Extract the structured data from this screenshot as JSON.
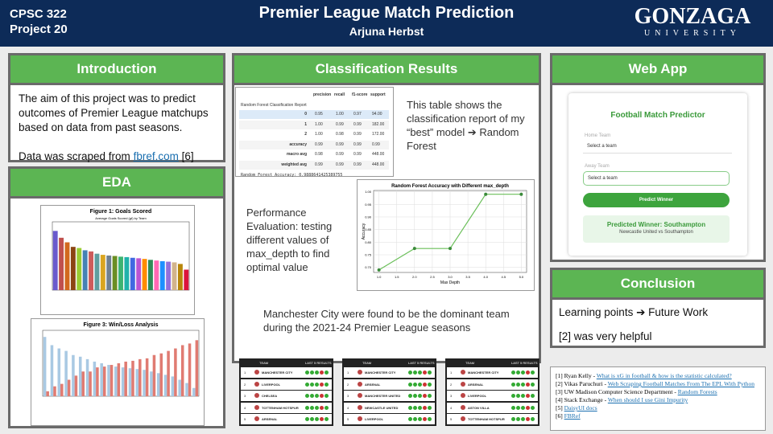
{
  "header": {
    "course": "CPSC 322",
    "project": "Project 20",
    "title": "Premier League Match Prediction",
    "author": "Arjuna Herbst",
    "logo": "GONZAGA",
    "logo_sub": "UNIVERSITY"
  },
  "introduction": {
    "heading": "Introduction",
    "text": "The aim of this project was to predict outcomes of Premier League matchups based on data from past seasons.",
    "scraped_prefix": "Data was scraped from ",
    "link": "fbref.com",
    "scraped_suffix": " [6]"
  },
  "eda": {
    "heading": "EDA"
  },
  "classification": {
    "heading": "Classification Results",
    "report": {
      "caption": "Random Forest Classification Report",
      "columns": [
        "precision",
        "recall",
        "f1-score",
        "support"
      ],
      "rows": [
        {
          "label": "0",
          "cells": [
            "0.95",
            "1.00",
            "0.97",
            "94.00"
          ]
        },
        {
          "label": "1",
          "cells": [
            "1.00",
            "0.99",
            "0.99",
            "182.00"
          ]
        },
        {
          "label": "2",
          "cells": [
            "1.00",
            "0.98",
            "0.99",
            "172.00"
          ]
        },
        {
          "label": "accuracy",
          "cells": [
            "0.99",
            "0.99",
            "0.99",
            "0.99"
          ]
        },
        {
          "label": "macro avg",
          "cells": [
            "0.98",
            "0.99",
            "0.99",
            "448.00"
          ]
        },
        {
          "label": "weighted avg",
          "cells": [
            "0.99",
            "0.99",
            "0.99",
            "448.00"
          ]
        }
      ],
      "footer": "Random Forest Accuracy: 0.9888641425389755"
    },
    "report_text": "This table shows the classification report of my “best” model ➔ Random Forest",
    "performance_text": "Performance Evaluation: testing different values of max_depth to find optimal value",
    "finding_text": "Manchester City were found to be the dominant team during the 2021-24 Premier League seasons",
    "standings": [
      {
        "header": [
          "TEAM",
          "LAST 5 RESULTS"
        ],
        "rows": [
          [
            "1",
            "MANCHESTER CITY"
          ],
          [
            "2",
            "LIVERPOOL"
          ],
          [
            "3",
            "CHELSEA"
          ],
          [
            "4",
            "TOTTENHAM HOTSPUR"
          ],
          [
            "5",
            "ARSENAL"
          ]
        ]
      },
      {
        "header": [
          "TEAM",
          "LAST 5 RESULTS"
        ],
        "rows": [
          [
            "1",
            "MANCHESTER CITY"
          ],
          [
            "2",
            "ARSENAL"
          ],
          [
            "3",
            "MANCHESTER UNITED"
          ],
          [
            "4",
            "NEWCASTLE UNITED"
          ],
          [
            "5",
            "LIVERPOOL"
          ]
        ]
      },
      {
        "header": [
          "TEAM",
          "LAST 5 RESULTS"
        ],
        "rows": [
          [
            "1",
            "MANCHESTER CITY"
          ],
          [
            "2",
            "ARSENAL"
          ],
          [
            "3",
            "LIVERPOOL"
          ],
          [
            "4",
            "ASTON VILLA"
          ],
          [
            "5",
            "TOTTENHAM HOTSPUR"
          ]
        ]
      }
    ]
  },
  "web_app": {
    "heading": "Web App",
    "app_title": "Football Match Predictor",
    "home_label": "Home Team",
    "home_select": "Select a team",
    "away_label": "Away Team",
    "away_select": "Select a team",
    "button": "Predict Winner",
    "result": "Predicted Winner: Southampton",
    "result_sub": "Newcastle United vs Southampton"
  },
  "conclusion": {
    "heading": "Conclusion",
    "lines": [
      "Learning points ➔ Future Work",
      "[2] was very helpful"
    ]
  },
  "references": [
    {
      "text": "[1] Ryan Kelly - ",
      "link": "What is xG in football & how is the statistic calculated?"
    },
    {
      "text": "[2] Vikas Paruchuri - ",
      "link": "Web Scraping Football Matches From The EPL With Python"
    },
    {
      "text": "[3] UW Madison Computer Science Department - ",
      "link": "Random Forests"
    },
    {
      "text": "[4] Stack Exchange - ",
      "link": "When should I use Gini Impurity"
    },
    {
      "text": "[5] ",
      "link": "DaisyUI docs"
    },
    {
      "text": "[6] ",
      "link": "FBRef"
    }
  ],
  "chart_data": [
    {
      "type": "bar",
      "title": "Figure 1: Goals Scored",
      "subtitle": "Average Goals Scored (gf) by Team",
      "categories": [
        null,
        null,
        null,
        null,
        null,
        null,
        null,
        null,
        null,
        null,
        null,
        null,
        null,
        null,
        null,
        null,
        null,
        null,
        null,
        null,
        null,
        null,
        null
      ],
      "values": [
        2.6,
        2.3,
        2.1,
        1.9,
        1.85,
        1.75,
        1.7,
        1.6,
        1.55,
        1.52,
        1.5,
        1.47,
        1.45,
        1.42,
        1.4,
        1.37,
        1.33,
        1.3,
        1.27,
        1.25,
        1.22,
        1.15,
        0.9
      ],
      "colors": [
        "#6a5acd",
        "#c0504d",
        "#d2691e",
        "#8b4513",
        "#9acd32",
        "#4682b4",
        "#cd5c5c",
        "#5f9ea0",
        "#daa520",
        "#708090",
        "#6b8e23",
        "#3cb371",
        "#20b2aa",
        "#4169e1",
        "#ba55d3",
        "#ff8c00",
        "#2e8b57",
        "#ff69b4",
        "#1e90ff",
        "#9370db",
        "#d2b48c",
        "#b8860b",
        "#dc143c"
      ],
      "ylim": [
        0,
        3
      ]
    },
    {
      "type": "bar",
      "title": "Figure 3: Win/Loss Analysis",
      "categories": [
        null,
        null,
        null,
        null,
        null,
        null,
        null,
        null,
        null,
        null,
        null,
        null,
        null,
        null,
        null,
        null,
        null,
        null,
        null,
        null,
        null,
        null
      ],
      "series": [
        {
          "color": "#a9c9e3",
          "values": [
            0.72,
            0.62,
            0.58,
            0.55,
            0.5,
            0.48,
            0.45,
            0.42,
            0.4,
            0.38,
            0.36,
            0.35,
            0.34,
            0.33,
            0.32,
            0.3,
            0.28,
            0.26,
            0.24,
            0.2,
            0.16,
            0.1
          ]
        },
        {
          "color": "#e07b72",
          "values": [
            0.06,
            0.12,
            0.15,
            0.2,
            0.25,
            0.3,
            0.3,
            0.35,
            0.36,
            0.38,
            0.4,
            0.42,
            0.43,
            0.45,
            0.46,
            0.5,
            0.52,
            0.55,
            0.58,
            0.62,
            0.64,
            0.68
          ]
        }
      ],
      "ylim": [
        0,
        0.8
      ]
    },
    {
      "type": "line",
      "title": "Random Forest Accuracy with Different max_depth",
      "x_label": "Max Depth",
      "y_label": "Accuracy",
      "x": [
        1,
        2,
        3,
        4,
        5
      ],
      "values": [
        0.69,
        0.775,
        0.775,
        0.99,
        0.99
      ],
      "color": "#6abf59",
      "xlim": [
        0.85,
        5.15
      ],
      "ylim": [
        0.68,
        1.005
      ],
      "xticks": [
        {
          "value": 1,
          "label": "1.0"
        },
        1.5,
        {
          "value": 2,
          "label": "2.0"
        },
        2.5,
        {
          "value": 3,
          "label": "3.0"
        },
        3.5,
        {
          "value": 4,
          "label": "4.0"
        },
        4.5,
        {
          "value": 5,
          "label": "5.0"
        }
      ],
      "yticks": [
        {
          "value": 0.7,
          "label": "0.70"
        },
        0.75,
        {
          "value": 0.8,
          "label": "0.80"
        },
        0.85,
        {
          "value": 0.9,
          "label": "0.90"
        },
        0.95,
        {
          "value": 1,
          "label": "1.00"
        }
      ],
      "grid": true
    }
  ]
}
